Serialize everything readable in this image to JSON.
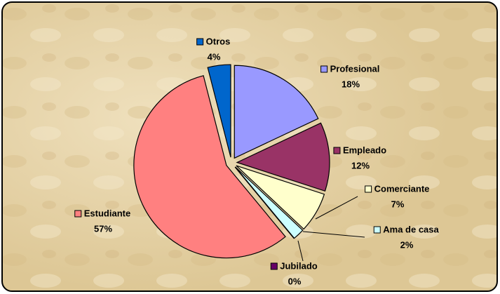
{
  "chart_data": {
    "type": "pie",
    "categories": [
      "Profesional",
      "Empleado",
      "Comerciante",
      "Ama de casa",
      "Jubilado",
      "Estudiante",
      "Otros"
    ],
    "values": [
      18,
      12,
      7,
      2,
      0,
      57,
      4
    ],
    "value_labels": [
      "18%",
      "12%",
      "7%",
      "2%",
      "0%",
      "57%",
      "4%"
    ],
    "colors": [
      "#9999ff",
      "#993366",
      "#ffffcc",
      "#ccffff",
      "#660066",
      "#ff8080",
      "#0066cc"
    ]
  }
}
